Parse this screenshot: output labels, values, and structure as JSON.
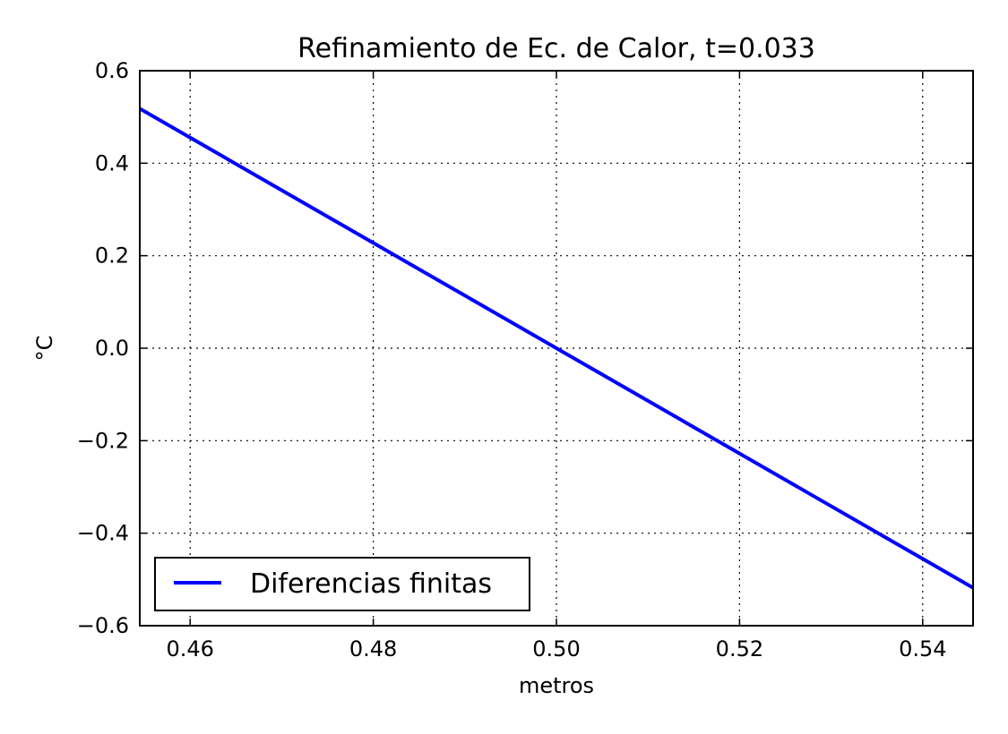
{
  "chart_data": {
    "type": "line",
    "title": "Refinamiento de Ec. de Calor, t=0.033",
    "xlabel": "metros",
    "ylabel": "°C",
    "xlim": [
      0.4545,
      0.5455
    ],
    "ylim": [
      -0.6,
      0.6
    ],
    "xticks": [
      0.46,
      0.48,
      0.5,
      0.52,
      0.54
    ],
    "xtick_labels": [
      "0.46",
      "0.48",
      "0.50",
      "0.52",
      "0.54"
    ],
    "yticks": [
      0.6,
      0.4,
      0.2,
      0.0,
      -0.2,
      -0.4,
      -0.6
    ],
    "ytick_labels": [
      "0.6",
      "0.4",
      "0.2",
      "0.0",
      "−0.2",
      "−0.4",
      "−0.6"
    ],
    "grid": true,
    "legend_position": "lower-left",
    "series": [
      {
        "name": "Diferencias finitas",
        "color": "#0000ff",
        "x": [
          0.4545,
          0.5455
        ],
        "y": [
          0.518,
          -0.518
        ]
      }
    ]
  }
}
